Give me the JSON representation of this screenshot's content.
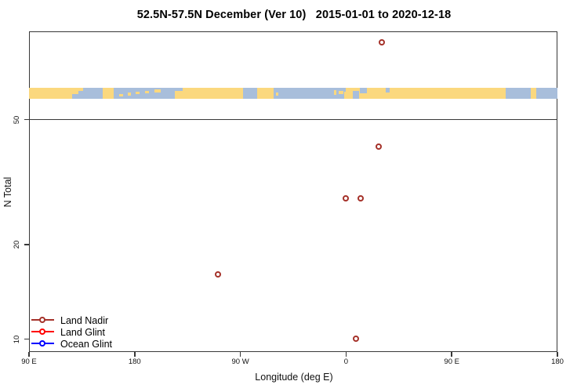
{
  "title": "52.5N-57.5N December (Ver 10)   2015-01-01 to 2020-12-18",
  "chart_data": {
    "type": "scatter",
    "title": "52.5N-57.5N December (Ver 10)   2015-01-01 to 2020-12-18",
    "xlabel": "Longitude (deg E)",
    "ylabel": "N Total",
    "x_scale": "linear",
    "y_scale": "log",
    "xlim": [
      -270,
      180
    ],
    "ylim": [
      9.1,
      95.5
    ],
    "grid": false,
    "legend_position": "bottom-left",
    "x_ticks": [
      {
        "value": -270,
        "label": "90 E"
      },
      {
        "value": -180,
        "label": "180"
      },
      {
        "value": -90,
        "label": "90 W"
      },
      {
        "value": 0,
        "label": "0"
      },
      {
        "value": 90,
        "label": "90 E"
      },
      {
        "value": 180,
        "label": "180"
      }
    ],
    "y_ticks": [
      {
        "value": 50,
        "label": "50"
      },
      {
        "value": 20,
        "label": "20"
      },
      {
        "value": 10,
        "label": "10"
      }
    ],
    "reference_line_y": 50,
    "series": [
      {
        "name": "Land Nadir",
        "color": "#A5322A",
        "marker": "open-circle",
        "points": [
          {
            "lon": 31,
            "n": 88
          },
          {
            "lon": 28,
            "n": 41
          },
          {
            "lon": 0,
            "n": 28
          },
          {
            "lon": 13,
            "n": 28
          },
          {
            "lon": -109,
            "n": 16
          },
          {
            "lon": 9,
            "n": 10
          }
        ]
      },
      {
        "name": "Land Glint",
        "color": "#FF0000",
        "marker": "open-circle",
        "points": []
      },
      {
        "name": "Ocean Glint",
        "color": "#0000FF",
        "marker": "open-circle",
        "points": []
      }
    ],
    "map_strip": {
      "description": "land-ocean strip for 52.5N-57.5N latitude band",
      "ocean_color": "#A8BEDB",
      "land_color": "#FBD87E",
      "land_segments": [
        {
          "from": -270,
          "to": -233
        },
        {
          "from": -233,
          "to": -228,
          "t": 0,
          "b": 0.6
        },
        {
          "from": -228,
          "to": -224,
          "t": 0,
          "b": 0.3
        },
        {
          "from": -207,
          "to": -198
        },
        {
          "from": -193,
          "to": -190,
          "t": 0.55,
          "b": 0.8
        },
        {
          "from": -186,
          "to": -183,
          "t": 0.45,
          "b": 0.7
        },
        {
          "from": -179,
          "to": -176,
          "t": 0.35,
          "b": 0.6
        },
        {
          "from": -171,
          "to": -168,
          "t": 0.25,
          "b": 0.5
        },
        {
          "from": -163,
          "to": -158,
          "t": 0.15,
          "b": 0.45
        },
        {
          "from": -146,
          "to": -139,
          "t": 0.3,
          "b": 1
        },
        {
          "from": -139,
          "to": -88
        },
        {
          "from": -76,
          "to": -62
        },
        {
          "from": -60,
          "to": -58,
          "t": 0.4,
          "b": 0.75
        },
        {
          "from": -10.5,
          "to": -8,
          "t": 0.2,
          "b": 0.65
        },
        {
          "from": -6,
          "to": -2,
          "t": 0.25,
          "b": 0.6
        },
        {
          "from": -1.5,
          "to": 0,
          "t": 0.35,
          "b": 1
        },
        {
          "from": 0,
          "to": 136
        },
        {
          "from": 157,
          "to": 162
        }
      ],
      "ocean_segments": [
        {
          "from": -88,
          "to": -76,
          "t": 0,
          "b": 0.85
        },
        {
          "from": 6,
          "to": 11,
          "t": 0.3,
          "b": 1
        },
        {
          "from": 12,
          "to": 18,
          "t": 0,
          "b": 0.5
        },
        {
          "from": 34,
          "to": 37,
          "t": 0,
          "b": 0.4
        }
      ]
    }
  },
  "colors": {
    "frame": "#383838",
    "land_nadir": "#A5322A",
    "land_glint": "#FF0000",
    "ocean_glint": "#0000FF",
    "strip_land": "#FBD87E",
    "strip_ocean": "#A8BEDB"
  }
}
